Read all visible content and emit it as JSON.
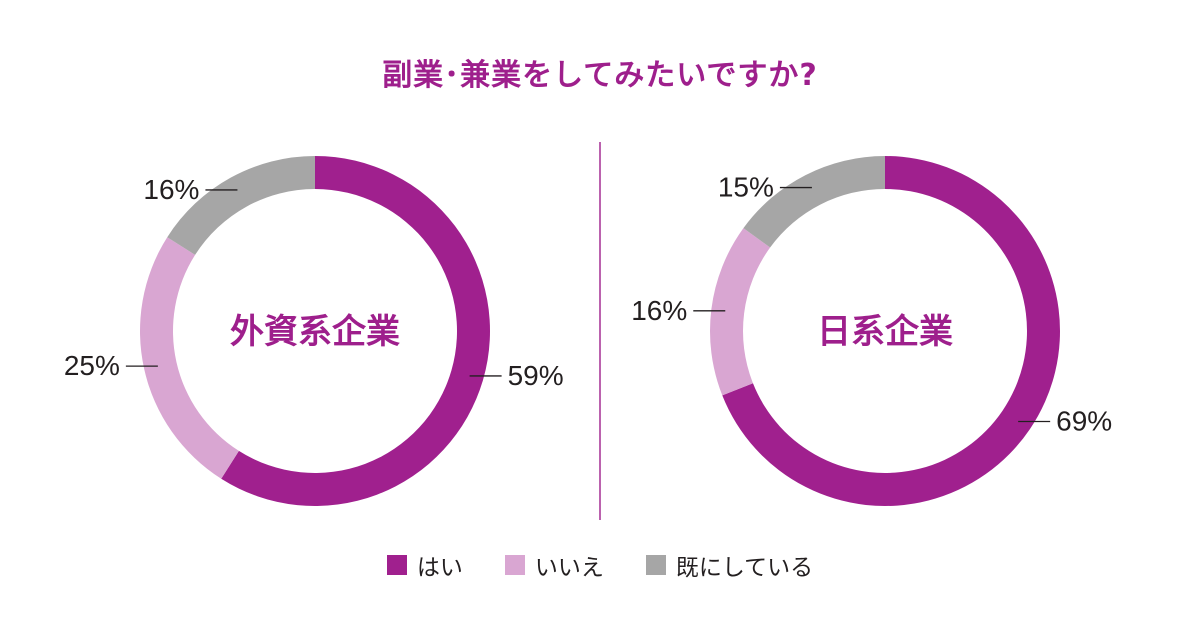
{
  "title": "副業･兼業をしてみたいですか?",
  "legend": [
    {
      "label": "はい",
      "color": "#a0208e"
    },
    {
      "label": "いいえ",
      "color": "#d9a6d2"
    },
    {
      "label": "既にしている",
      "color": "#a6a6a6"
    }
  ],
  "chart_data": [
    {
      "type": "pie",
      "center_label": "外資系企業",
      "categories": [
        "はい",
        "いいえ",
        "既にしている"
      ],
      "values": [
        59,
        25,
        16
      ],
      "labels": [
        "59%",
        "25%",
        "16%"
      ],
      "colors": [
        "#a0208e",
        "#d9a6d2",
        "#a6a6a6"
      ]
    },
    {
      "type": "pie",
      "center_label": "日系企業",
      "categories": [
        "はい",
        "いいえ",
        "既にしている"
      ],
      "values": [
        69,
        16,
        15
      ],
      "labels": [
        "69%",
        "16%",
        "15%"
      ],
      "colors": [
        "#a0208e",
        "#d9a6d2",
        "#a6a6a6"
      ]
    }
  ]
}
